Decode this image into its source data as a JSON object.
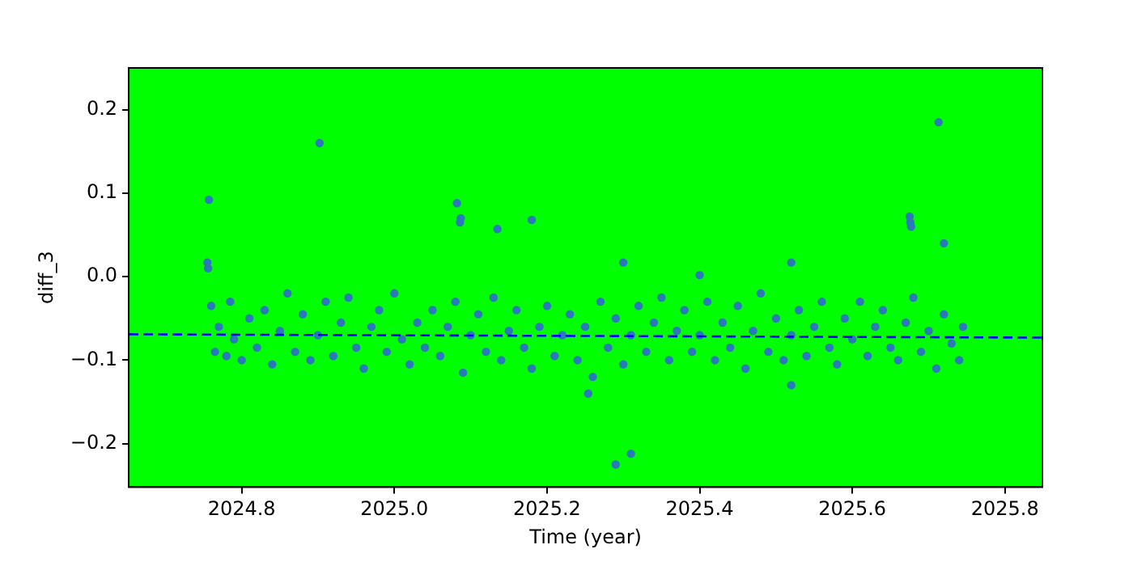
{
  "chart_data": {
    "type": "scatter",
    "xlabel": "Time (year)",
    "ylabel": "diff_3",
    "xlim": [
      2024.652,
      2025.849
    ],
    "ylim": [
      -0.252,
      0.25
    ],
    "xticks": [
      2024.8,
      {
        "value": 2025,
        "label": "2025.0"
      },
      2025.2,
      2025.4,
      2025.6,
      2025.8
    ],
    "yticks": [
      {
        "value": -0.2,
        "label": "−0.2"
      },
      {
        "value": -0.1,
        "label": "−0.1"
      },
      {
        "value": 0,
        "label": "0.0"
      },
      0.1,
      0.2
    ],
    "grid": false,
    "legend": false,
    "marker": "circle",
    "series": [
      {
        "type": "scatter",
        "color": "#2a7ab9",
        "x": [
          2024.755,
          2024.756,
          2024.757,
          2024.902,
          2025.082,
          2025.086,
          2025.087,
          2025.135,
          2025.18,
          2025.29,
          2025.31,
          2025.254,
          2025.3,
          2025.4,
          2025.52,
          2025.52,
          2025.675,
          2025.676,
          2025.677,
          2025.713,
          2025.72,
          2024.76,
          2024.765,
          2024.77,
          2024.78,
          2024.785,
          2024.79,
          2024.8,
          2024.81,
          2024.82,
          2024.83,
          2024.84,
          2024.85,
          2024.86,
          2024.87,
          2024.88,
          2024.89,
          2024.9,
          2024.91,
          2024.92,
          2024.93,
          2024.94,
          2024.95,
          2024.96,
          2024.97,
          2024.98,
          2024.99,
          2025.0,
          2025.01,
          2025.02,
          2025.03,
          2025.04,
          2025.05,
          2025.06,
          2025.07,
          2025.08,
          2025.09,
          2025.1,
          2025.11,
          2025.12,
          2025.13,
          2025.14,
          2025.15,
          2025.16,
          2025.17,
          2025.18,
          2025.19,
          2025.2,
          2025.21,
          2025.22,
          2025.23,
          2025.24,
          2025.25,
          2025.26,
          2025.27,
          2025.28,
          2025.29,
          2025.3,
          2025.31,
          2025.32,
          2025.33,
          2025.34,
          2025.35,
          2025.36,
          2025.37,
          2025.38,
          2025.39,
          2025.4,
          2025.41,
          2025.42,
          2025.43,
          2025.44,
          2025.45,
          2025.46,
          2025.47,
          2025.48,
          2025.49,
          2025.5,
          2025.51,
          2025.52,
          2025.53,
          2025.54,
          2025.55,
          2025.56,
          2025.57,
          2025.58,
          2025.59,
          2025.6,
          2025.61,
          2025.62,
          2025.63,
          2025.64,
          2025.65,
          2025.66,
          2025.67,
          2025.68,
          2025.69,
          2025.7,
          2025.71,
          2025.72,
          2025.73,
          2025.74,
          2025.745
        ],
        "values": [
          0.017,
          0.01,
          0.092,
          0.16,
          0.088,
          0.065,
          0.07,
          0.057,
          0.068,
          -0.225,
          -0.212,
          -0.14,
          0.017,
          0.002,
          0.017,
          -0.13,
          0.072,
          0.065,
          0.06,
          0.185,
          0.04,
          -0.035,
          -0.09,
          -0.06,
          -0.095,
          -0.03,
          -0.075,
          -0.1,
          -0.05,
          -0.085,
          -0.04,
          -0.105,
          -0.065,
          -0.02,
          -0.09,
          -0.045,
          -0.1,
          -0.07,
          -0.03,
          -0.095,
          -0.055,
          -0.025,
          -0.085,
          -0.11,
          -0.06,
          -0.04,
          -0.09,
          -0.02,
          -0.075,
          -0.105,
          -0.055,
          -0.085,
          -0.04,
          -0.095,
          -0.06,
          -0.03,
          -0.115,
          -0.07,
          -0.045,
          -0.09,
          -0.025,
          -0.1,
          -0.065,
          -0.04,
          -0.085,
          -0.11,
          -0.06,
          -0.035,
          -0.095,
          -0.07,
          -0.045,
          -0.1,
          -0.06,
          -0.12,
          -0.03,
          -0.085,
          -0.05,
          -0.105,
          -0.07,
          -0.035,
          -0.09,
          -0.055,
          -0.025,
          -0.1,
          -0.065,
          -0.04,
          -0.09,
          -0.07,
          -0.03,
          -0.1,
          -0.055,
          -0.085,
          -0.035,
          -0.11,
          -0.065,
          -0.02,
          -0.09,
          -0.05,
          -0.1,
          -0.07,
          -0.04,
          -0.095,
          -0.06,
          -0.03,
          -0.085,
          -0.105,
          -0.05,
          -0.075,
          -0.03,
          -0.095,
          -0.06,
          -0.04,
          -0.085,
          -0.1,
          -0.055,
          -0.025,
          -0.09,
          -0.065,
          -0.11,
          -0.045,
          -0.08,
          -0.1,
          -0.06
        ]
      },
      {
        "type": "line",
        "color": "#0000ff",
        "line_style": "dashed",
        "marker": "none",
        "x": [
          2024.652,
          2025.849
        ],
        "values": [
          -0.069,
          -0.073
        ]
      }
    ]
  }
}
